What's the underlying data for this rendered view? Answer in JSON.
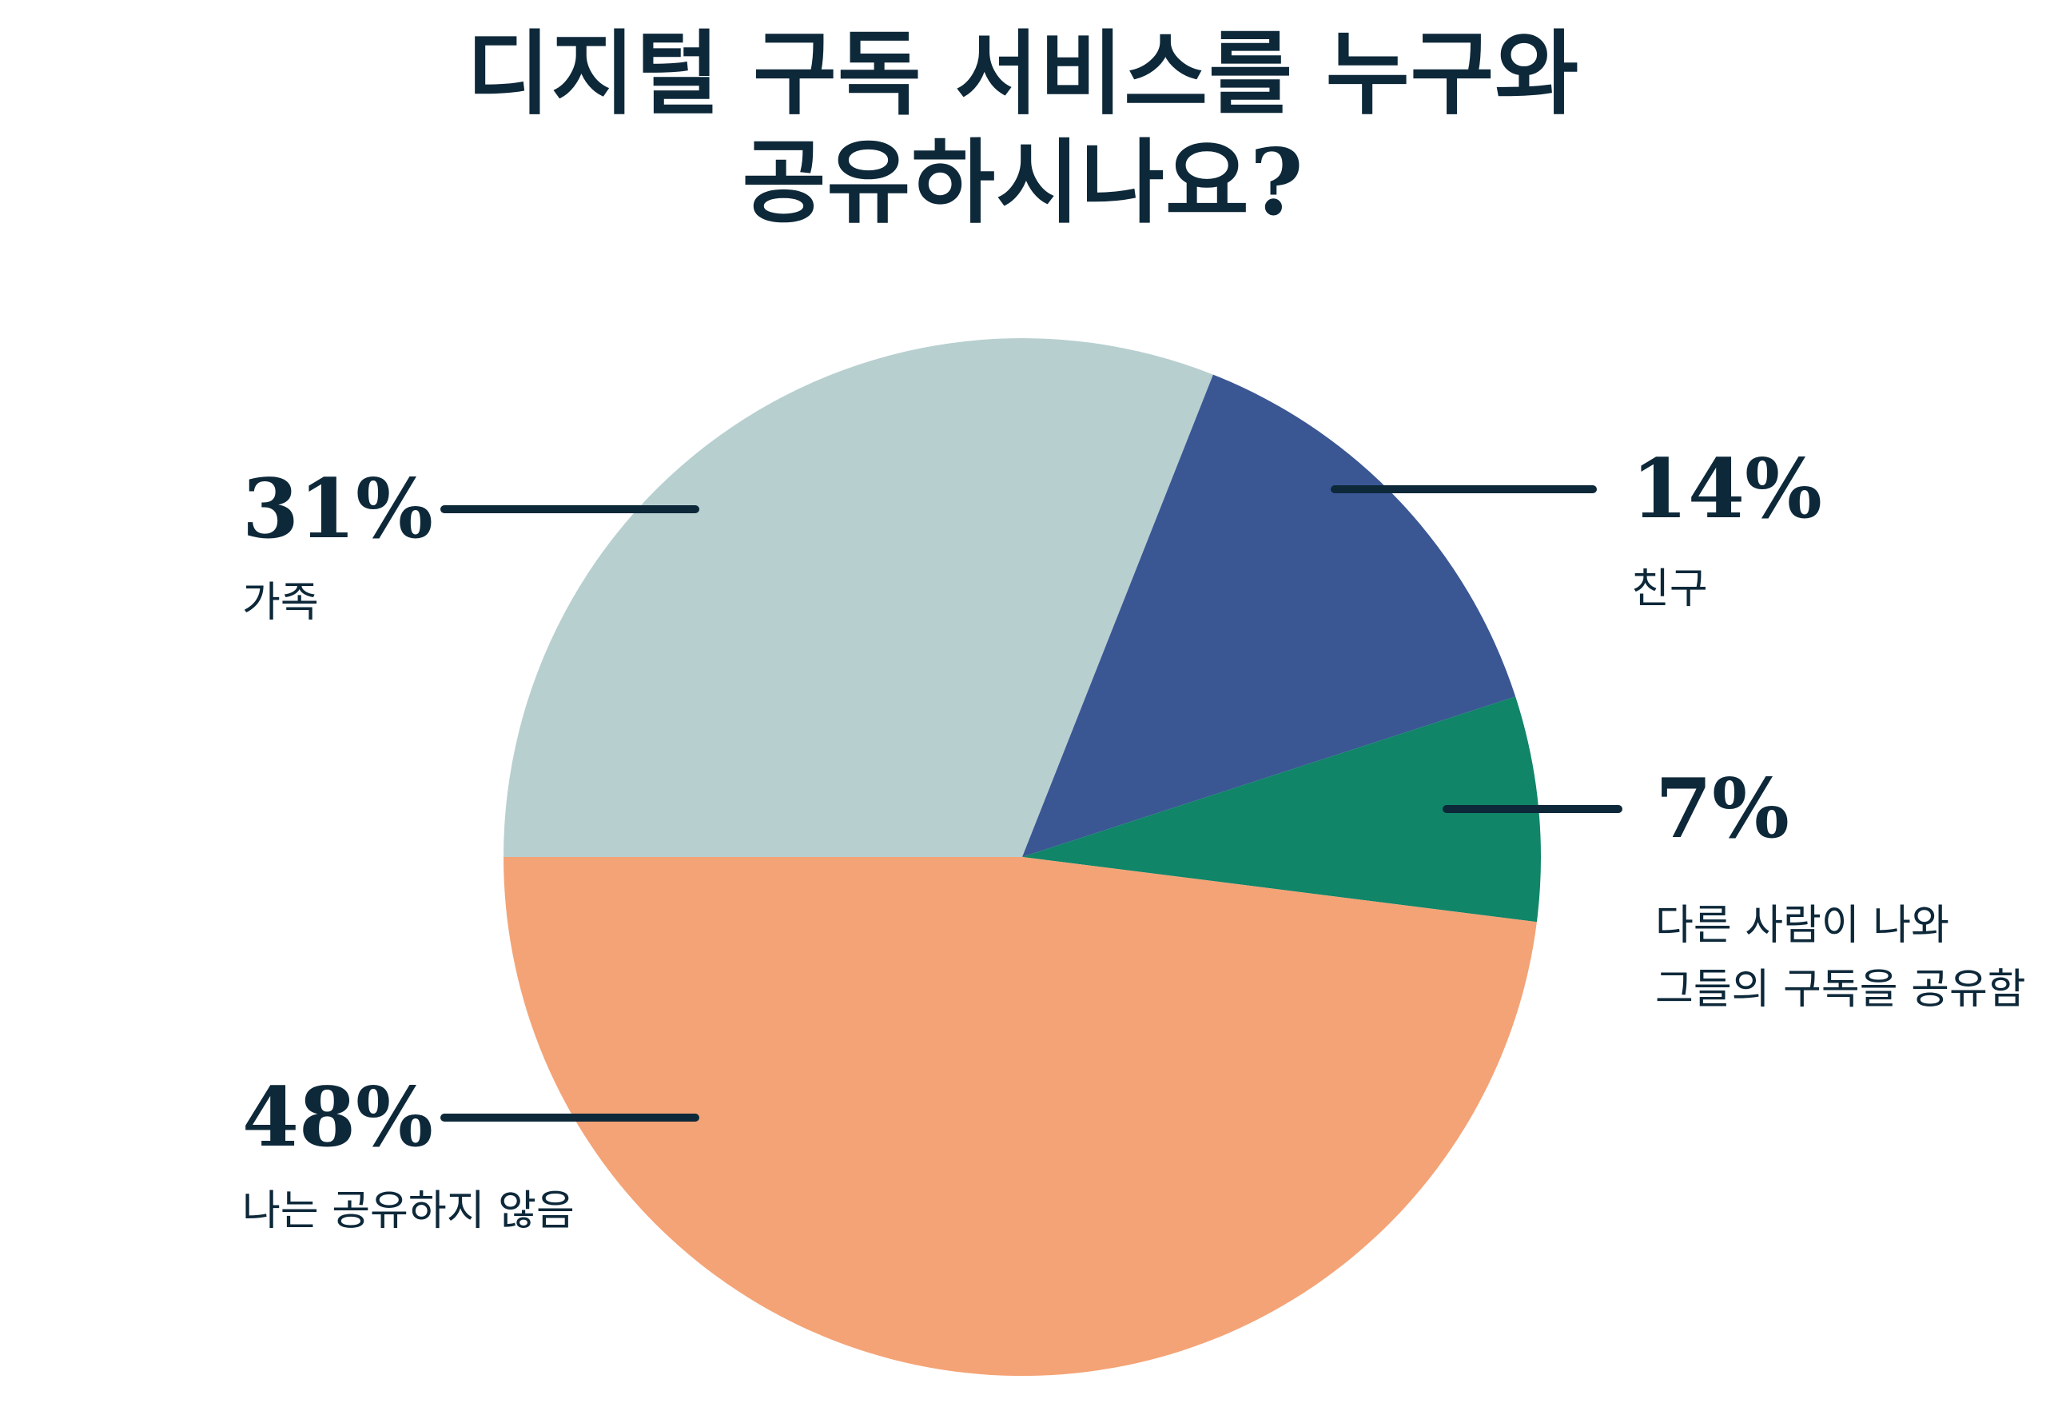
{
  "title": {
    "line1": "디지털 구독 서비스를 누구와",
    "line2": "공유하시나요?"
  },
  "colors": {
    "navy": "#0d2839",
    "background": "#ffffff"
  },
  "chart_data": {
    "type": "pie",
    "title": "디지털 구독 서비스를 누구와 공유하시나요?",
    "start_angle_deg_from_north": 270,
    "direction": "clockwise",
    "grid": false,
    "legend_position": "callout-labels",
    "slices": [
      {
        "id": "family",
        "pct_label": "31%",
        "value": 31,
        "color": "#b8cfd0",
        "label_lines": [
          "가족"
        ]
      },
      {
        "id": "friends",
        "pct_label": "14%",
        "value": 14,
        "color": "#3a5794",
        "label_lines": [
          "친구"
        ]
      },
      {
        "id": "someone-else-shares-with-me",
        "pct_label": "7%",
        "value": 7,
        "color": "#108568",
        "label_lines": [
          "다른 사람이 나와",
          "그들의 구독을 공유함"
        ]
      },
      {
        "id": "i-do-not-share",
        "pct_label": "48%",
        "value": 48,
        "color": "#f4a376",
        "label_lines": [
          "나는 공유하지 않음"
        ]
      }
    ]
  }
}
